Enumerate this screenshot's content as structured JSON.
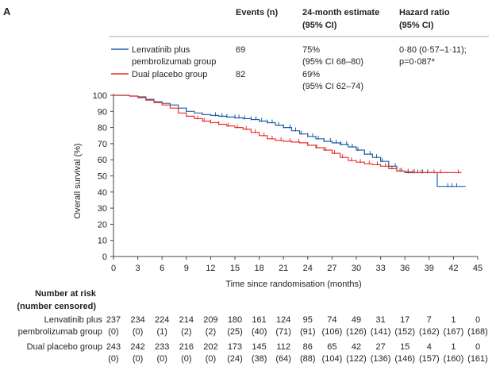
{
  "panel_label": "A",
  "colors": {
    "blue": "#1f5fa8",
    "red": "#e8322a",
    "axis": "#444444",
    "text": "#222222"
  },
  "header": {
    "events": [
      "Events (n)"
    ],
    "estimate": [
      "24-month estimate",
      "(95% CI)"
    ],
    "hazard": [
      "Hazard ratio",
      "(95% CI)"
    ]
  },
  "legend": [
    {
      "name_lines": [
        "Lenvatinib plus",
        "pembrolizumab group"
      ],
      "color": "#1f5fa8",
      "events": "69",
      "estimate_lines": [
        "75%",
        "(95% CI 68–80)"
      ],
      "hazard_lines": [
        "0·80 (0·57–1·11);",
        "p=0·087*"
      ]
    },
    {
      "name_lines": [
        "Dual placebo group"
      ],
      "color": "#e8322a",
      "events": "82",
      "estimate_lines": [
        "69%",
        "(95% CI 62–74)"
      ],
      "hazard_lines": []
    }
  ],
  "chart_data": {
    "type": "line",
    "xlabel": "Time since randomisation (months)",
    "ylabel": "Overall survival (%)",
    "xlim": [
      0,
      45
    ],
    "ylim": [
      0,
      100
    ],
    "xticks": [
      "0",
      "3",
      "6",
      "9",
      "12",
      "15",
      "18",
      "21",
      "24",
      "27",
      "30",
      "33",
      "36",
      "39",
      "42",
      "45"
    ],
    "yticks": [
      "0",
      "10",
      "20",
      "30",
      "40",
      "50",
      "60",
      "70",
      "80",
      "90",
      "100"
    ],
    "series": [
      {
        "name": "Lenvatinib plus pembrolizumab group",
        "color": "#1f5fa8",
        "x": [
          0,
          1,
          2,
          3,
          4,
          5,
          6,
          7,
          8,
          9,
          10,
          11,
          12,
          13,
          14,
          15,
          16,
          17,
          18,
          19,
          20,
          21,
          22,
          23,
          24,
          25,
          26,
          27,
          28,
          29,
          30,
          31,
          32,
          33,
          34,
          35,
          36,
          37,
          38,
          39,
          40,
          41,
          42,
          43.5
        ],
        "y": [
          100,
          100,
          99.5,
          99,
          97.5,
          96,
          95,
          94,
          92,
          90,
          89,
          88,
          87.5,
          87,
          86.5,
          86,
          85.5,
          85,
          84,
          83,
          81.5,
          80,
          78,
          76,
          74.5,
          73,
          71.5,
          70.5,
          69.5,
          68,
          66,
          63.5,
          61.5,
          59,
          56,
          53,
          52,
          52,
          52,
          52,
          43.5,
          43.5,
          43.5,
          43.5
        ],
        "censor_x": [
          9,
          12.6,
          13.4,
          14,
          15,
          15.5,
          16.2,
          17,
          17.6,
          18.3,
          19,
          19.6,
          20.4,
          21,
          21.8,
          22.5,
          23.2,
          24,
          24.6,
          25.3,
          26,
          26.8,
          27.5,
          28.1,
          28.8,
          29.5,
          30.2,
          31,
          31.7,
          32.5,
          33.2,
          34,
          34.8,
          35.6,
          36.4,
          37,
          37.6,
          38.2,
          38.8,
          41.3,
          41.8,
          42.4
        ]
      },
      {
        "name": "Dual placebo group",
        "color": "#e8322a",
        "x": [
          0,
          1,
          2,
          3,
          4,
          5,
          6,
          7,
          8,
          9,
          10,
          11,
          12,
          13,
          14,
          15,
          16,
          17,
          18,
          19,
          20,
          21,
          22,
          23,
          24,
          25,
          26,
          27,
          28,
          29,
          30,
          31,
          32,
          33,
          34,
          35,
          36,
          37,
          38,
          39,
          40,
          41,
          42,
          43
        ],
        "y": [
          100,
          100,
          99.5,
          98.5,
          97,
          95.5,
          94,
          92,
          89,
          87,
          85.5,
          84,
          83,
          82,
          81,
          80,
          79,
          77,
          75,
          73,
          72,
          71.5,
          71,
          70.5,
          69,
          67.5,
          66,
          64,
          61.5,
          59.5,
          58.5,
          57.5,
          57,
          56,
          54.5,
          53,
          52.5,
          52,
          52,
          52,
          52,
          52,
          52,
          52
        ],
        "censor_x": [
          10.4,
          11.2,
          12,
          13,
          14.2,
          15.3,
          16.4,
          17.5,
          18.6,
          19.6,
          20.7,
          21.8,
          22.9,
          24,
          25.1,
          26.2,
          27.3,
          28.3,
          29.4,
          30.5,
          31.6,
          32.6,
          33.6,
          34.4,
          35.4,
          36.4,
          37.2,
          38,
          38.8,
          39.6,
          40.4,
          42.6
        ]
      }
    ]
  },
  "risk_table": {
    "title_lines": [
      "Number at risk",
      "(number censored)"
    ],
    "rows": [
      {
        "label_lines": [
          "Lenvatinib plus",
          "pembrolizumab group"
        ],
        "at_risk": [
          "237",
          "234",
          "224",
          "214",
          "209",
          "180",
          "161",
          "124",
          "95",
          "74",
          "49",
          "31",
          "17",
          "7",
          "1",
          "0"
        ],
        "censored": [
          "(0)",
          "(0)",
          "(1)",
          "(2)",
          "(2)",
          "(25)",
          "(40)",
          "(71)",
          "(91)",
          "(106)",
          "(126)",
          "(141)",
          "(152)",
          "(162)",
          "(167)",
          "(168)"
        ]
      },
      {
        "label_lines": [
          "Dual placebo group",
          ""
        ],
        "at_risk": [
          "243",
          "242",
          "233",
          "216",
          "202",
          "173",
          "145",
          "112",
          "86",
          "65",
          "42",
          "27",
          "15",
          "4",
          "1",
          "0"
        ],
        "censored": [
          "(0)",
          "(0)",
          "(0)",
          "(0)",
          "(0)",
          "(24)",
          "(38)",
          "(64)",
          "(88)",
          "(104)",
          "(122)",
          "(136)",
          "(146)",
          "(157)",
          "(160)",
          "(161)"
        ]
      }
    ]
  }
}
